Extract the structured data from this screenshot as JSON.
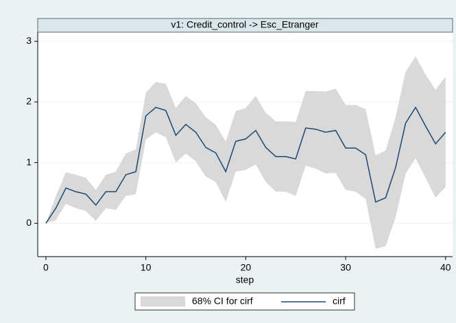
{
  "chart_data": {
    "type": "line",
    "title": "v1: Credit_control -> Esc_Etranger",
    "xlabel": "step",
    "x": [
      0,
      1,
      2,
      3,
      4,
      5,
      6,
      7,
      8,
      9,
      10,
      11,
      12,
      13,
      14,
      15,
      16,
      17,
      18,
      19,
      20,
      21,
      22,
      23,
      24,
      25,
      26,
      27,
      28,
      29,
      30,
      31,
      32,
      33,
      34,
      35,
      36,
      37,
      38,
      39,
      40
    ],
    "band": {
      "name": "68% CI for cirf",
      "color": "#d9d9d9",
      "lower": [
        0,
        0.05,
        0.32,
        0.25,
        0.2,
        0.04,
        0.25,
        0.22,
        0.45,
        0.48,
        1.38,
        1.5,
        1.42,
        1.0,
        1.15,
        1.02,
        0.77,
        0.68,
        0.35,
        0.85,
        0.88,
        0.97,
        0.68,
        0.52,
        0.52,
        0.45,
        0.95,
        0.9,
        0.82,
        0.83,
        0.55,
        0.52,
        0.4,
        -0.42,
        -0.38,
        0.1,
        0.82,
        1.07,
        0.75,
        0.42,
        0.6
      ],
      "upper": [
        0,
        0.45,
        0.84,
        0.8,
        0.75,
        0.55,
        0.8,
        0.85,
        1.15,
        1.22,
        2.15,
        2.33,
        2.3,
        1.9,
        2.1,
        1.98,
        1.75,
        1.62,
        1.35,
        1.85,
        1.9,
        2.1,
        1.82,
        1.68,
        1.68,
        1.67,
        2.18,
        2.18,
        2.17,
        2.22,
        1.95,
        1.95,
        1.88,
        1.12,
        1.2,
        1.75,
        2.5,
        2.75,
        2.45,
        2.2,
        2.42
      ]
    },
    "series": [
      {
        "name": "cirf",
        "color": "#1a476f",
        "values": [
          0,
          0.25,
          0.58,
          0.52,
          0.48,
          0.3,
          0.52,
          0.52,
          0.8,
          0.85,
          1.77,
          1.91,
          1.86,
          1.45,
          1.63,
          1.5,
          1.25,
          1.16,
          0.85,
          1.35,
          1.39,
          1.53,
          1.25,
          1.1,
          1.1,
          1.06,
          1.57,
          1.55,
          1.5,
          1.53,
          1.24,
          1.24,
          1.13,
          0.35,
          0.42,
          0.92,
          1.65,
          1.91,
          1.6,
          1.31,
          1.5
        ]
      }
    ],
    "xlim": [
      -0.82,
      40.7
    ],
    "ylim": [
      -0.55,
      3.15
    ],
    "xticks": [
      0,
      10,
      20,
      30,
      40
    ],
    "yticks": [
      0,
      1,
      2,
      3
    ],
    "grid": true
  }
}
